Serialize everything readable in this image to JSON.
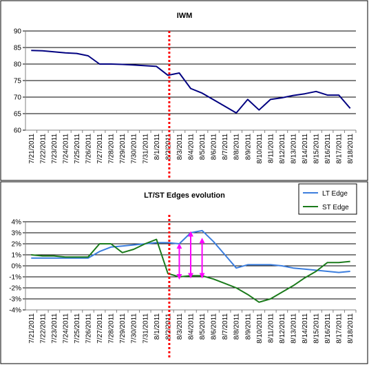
{
  "chart_data": [
    {
      "type": "line",
      "title": "IWM",
      "categories": [
        "7/21/2011",
        "7/22/2011",
        "7/23/2011",
        "7/24/2011",
        "7/25/2011",
        "7/26/2011",
        "7/27/2011",
        "7/28/2011",
        "7/29/2011",
        "7/30/2011",
        "7/31/2011",
        "8/1/2011",
        "8/2/2011",
        "8/3/2011",
        "8/4/2011",
        "8/5/2011",
        "8/6/2011",
        "8/7/2011",
        "8/8/2011",
        "8/9/2011",
        "8/10/2011",
        "8/11/2011",
        "8/12/2011",
        "8/13/2011",
        "8/14/2011",
        "8/15/2011",
        "8/16/2011",
        "8/17/2011",
        "8/18/2011"
      ],
      "series": [
        {
          "color": "#000080",
          "values": [
            84.1,
            84.0,
            83.7,
            83.4,
            83.2,
            82.5,
            80.0,
            80.0,
            79.9,
            79.7,
            79.5,
            79.3,
            76.6,
            77.3,
            72.6,
            71.2,
            69.2,
            67.2,
            65.2,
            69.3,
            66.1,
            69.3,
            69.8,
            70.5,
            71.0,
            71.7,
            70.6,
            70.6,
            66.6
          ]
        }
      ],
      "ylim": [
        60,
        90
      ],
      "yticks": [
        "60",
        "65",
        "70",
        "75",
        "80",
        "85",
        "90"
      ],
      "grid": true,
      "marker_line": {
        "category": "8/2/2011",
        "color": "#ff0000",
        "style": "dotted"
      }
    },
    {
      "type": "line",
      "title": "LT/ST Edges evolution",
      "categories": [
        "7/21/2011",
        "7/22/2011",
        "7/23/2011",
        "7/24/2011",
        "7/25/2011",
        "7/26/2011",
        "7/27/2011",
        "7/28/2011",
        "7/29/2011",
        "7/30/2011",
        "7/31/2011",
        "8/1/2011",
        "8/2/2011",
        "8/3/2011",
        "8/4/2011",
        "8/5/2011",
        "8/6/2011",
        "8/7/2011",
        "8/8/2011",
        "8/9/2011",
        "8/10/2011",
        "8/11/2011",
        "8/12/2011",
        "8/13/2011",
        "8/14/2011",
        "8/15/2011",
        "8/16/2011",
        "8/17/2011",
        "8/18/2011"
      ],
      "series": [
        {
          "name": "LT Edge",
          "color": "#3b7ddd",
          "values": [
            0.7,
            0.7,
            0.7,
            0.7,
            0.7,
            0.7,
            1.3,
            1.7,
            1.8,
            1.9,
            2.0,
            2.1,
            2.1,
            2.0,
            3.0,
            3.2,
            2.2,
            1.0,
            -0.2,
            0.1,
            0.1,
            0.1,
            0.0,
            -0.2,
            -0.3,
            -0.4,
            -0.5,
            -0.6,
            -0.5
          ]
        },
        {
          "name": "ST Edge",
          "color": "#1a7a1a",
          "values": [
            1.0,
            0.9,
            0.9,
            0.8,
            0.8,
            0.8,
            2.0,
            2.0,
            1.2,
            1.5,
            2.0,
            2.4,
            -0.7,
            -1.0,
            -0.9,
            -0.9,
            -1.2,
            -1.6,
            -2.0,
            -2.6,
            -3.3,
            -3.0,
            -2.4,
            -1.8,
            -1.1,
            -0.5,
            0.3,
            0.3,
            0.4
          ]
        }
      ],
      "ylim": [
        -4,
        4
      ],
      "yticks": [
        "-4%",
        "-3%",
        "-2%",
        "-1%",
        "0%",
        "1%",
        "2%",
        "3%",
        "4%"
      ],
      "grid": true,
      "legend": "top-right",
      "marker_line": {
        "category": "8/2/2011",
        "color": "#ff0000",
        "style": "dotted"
      },
      "annotations": [
        {
          "type": "double-arrow",
          "category": "8/3/2011",
          "from": -1.0,
          "to": 1.8,
          "color": "#ff00ff"
        },
        {
          "type": "double-arrow",
          "category": "8/4/2011",
          "from": -0.9,
          "to": 2.9,
          "color": "#ff00ff"
        },
        {
          "type": "double-arrow",
          "category": "8/5/2011",
          "from": -0.9,
          "to": 2.3,
          "color": "#ff00ff"
        }
      ]
    }
  ]
}
